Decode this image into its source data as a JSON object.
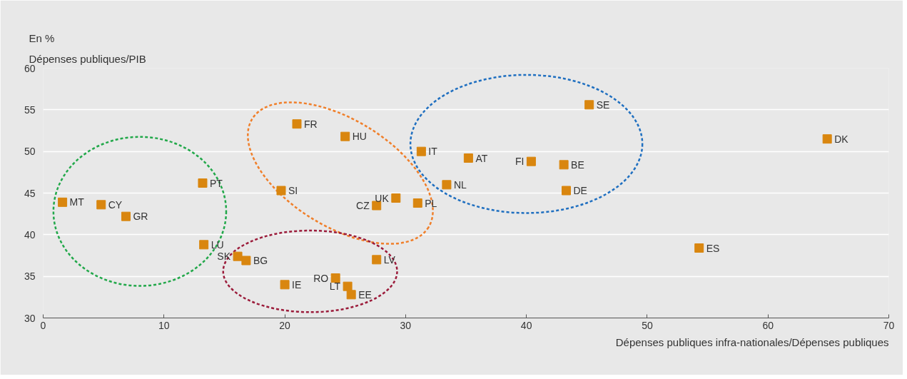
{
  "chart_data": {
    "type": "scatter",
    "title": "En %",
    "ylabel": "Dépenses publiques/PIB",
    "xlabel": "Dépenses publiques infra-nationales/Dépenses publiques",
    "x": [
      1.6,
      4.8,
      6.85,
      13.2,
      13.3,
      16.1,
      16.8,
      20.0,
      19.7,
      21.0,
      25.0,
      24.2,
      25.2,
      25.5,
      27.6,
      27.6,
      29.2,
      31.0,
      31.3,
      33.4,
      35.2,
      40.4,
      43.1,
      43.3,
      45.2,
      54.3,
      64.9
    ],
    "values": [
      43.9,
      43.6,
      42.2,
      46.2,
      38.8,
      37.4,
      36.9,
      34.0,
      45.3,
      53.3,
      51.8,
      34.8,
      33.8,
      32.8,
      37.0,
      43.5,
      44.4,
      43.8,
      50.0,
      46.0,
      49.2,
      48.8,
      48.4,
      45.3,
      55.6,
      38.4,
      51.5
    ],
    "color": "#d9860f",
    "marker": "square",
    "annotations": [
      {
        "text": "MT",
        "x": 1.6,
        "y": 43.9
      },
      {
        "text": "CY",
        "x": 4.8,
        "y": 43.6
      },
      {
        "text": "GR",
        "x": 6.85,
        "y": 42.2
      },
      {
        "text": "PT",
        "x": 13.2,
        "y": 46.2
      },
      {
        "text": "LU",
        "x": 13.3,
        "y": 38.8
      },
      {
        "text": "SK",
        "x": 16.1,
        "y": 37.4
      },
      {
        "text": "BG",
        "x": 16.8,
        "y": 36.9
      },
      {
        "text": "IE",
        "x": 20.0,
        "y": 34.0
      },
      {
        "text": "SI",
        "x": 19.7,
        "y": 45.3
      },
      {
        "text": "FR",
        "x": 21.0,
        "y": 53.3
      },
      {
        "text": "HU",
        "x": 25.0,
        "y": 51.8
      },
      {
        "text": "RO",
        "x": 24.2,
        "y": 34.8
      },
      {
        "text": "LT",
        "x": 25.2,
        "y": 33.8
      },
      {
        "text": "EE",
        "x": 25.5,
        "y": 32.8
      },
      {
        "text": "LV",
        "x": 27.6,
        "y": 37.0
      },
      {
        "text": "CZ",
        "x": 27.6,
        "y": 43.5
      },
      {
        "text": "UK",
        "x": 29.2,
        "y": 44.4
      },
      {
        "text": "PL",
        "x": 31.0,
        "y": 43.8
      },
      {
        "text": "IT",
        "x": 31.3,
        "y": 50.0
      },
      {
        "text": "NL",
        "x": 33.4,
        "y": 46.0
      },
      {
        "text": "AT",
        "x": 35.2,
        "y": 49.2
      },
      {
        "text": "FI",
        "x": 40.4,
        "y": 48.8
      },
      {
        "text": "BE",
        "x": 43.1,
        "y": 48.4
      },
      {
        "text": "DE",
        "x": 43.3,
        "y": 45.3
      },
      {
        "text": "SE",
        "x": 45.2,
        "y": 55.6
      },
      {
        "text": "ES",
        "x": 54.3,
        "y": 38.4
      },
      {
        "text": "DK",
        "x": 64.9,
        "y": 51.5
      }
    ],
    "xlim": [
      0,
      70
    ],
    "ylim": [
      30,
      60
    ],
    "xticks": [
      0,
      10,
      20,
      30,
      40,
      50,
      60,
      70
    ],
    "yticks": [
      30,
      35,
      40,
      45,
      50,
      55,
      60
    ],
    "grid": "y"
  }
}
